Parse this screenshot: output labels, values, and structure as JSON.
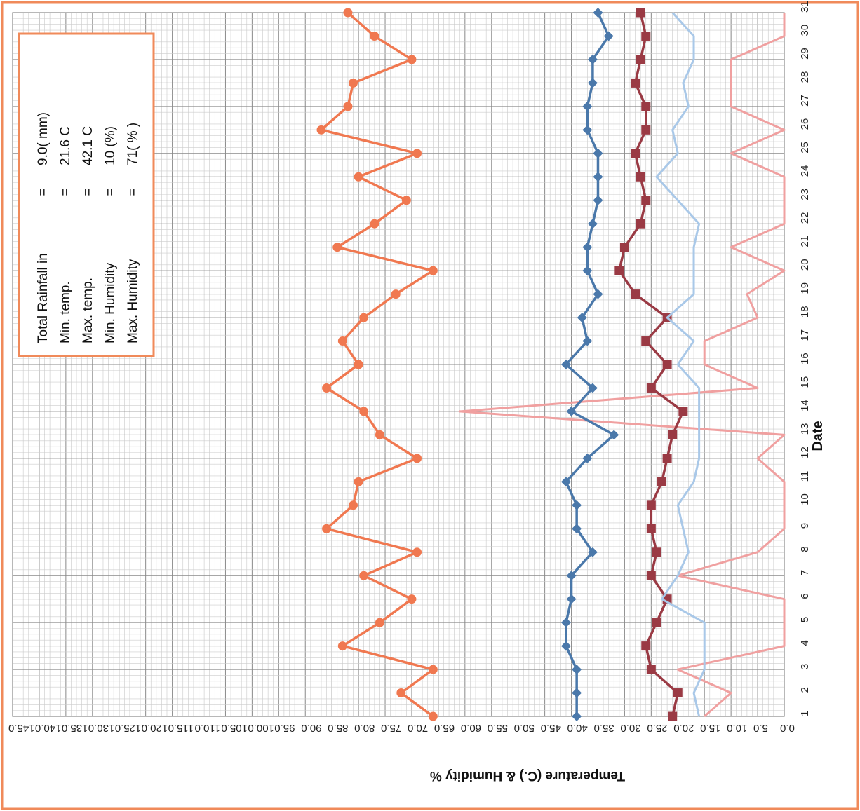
{
  "chart_data": {
    "type": "line",
    "xlabel": "Date",
    "ylabel": "Temperature (C.) & Humidity %",
    "x": [
      1,
      2,
      3,
      4,
      5,
      6,
      7,
      8,
      9,
      10,
      11,
      12,
      13,
      14,
      15,
      16,
      17,
      18,
      19,
      20,
      21,
      22,
      23,
      24,
      25,
      26,
      27,
      28,
      29,
      30,
      31
    ],
    "x_tick_labels": [
      "1",
      "2",
      "3",
      "4",
      "5",
      "6",
      "7",
      "8",
      "9",
      "10",
      "11",
      "12",
      "13",
      "14",
      "15",
      "16",
      "17",
      "18",
      "19",
      "20",
      "21",
      "22",
      "23",
      "24",
      "25",
      "26",
      "27",
      "28",
      "29",
      "30",
      "31"
    ],
    "y_tick_labels": [
      "0.0",
      "5.0",
      "10.0",
      "15.0",
      "20.0",
      "25.0",
      "30.0",
      "35.0",
      "40.0",
      "45.0",
      "50.0",
      "55.0",
      "60.0",
      "65.0",
      "70.0",
      "75.0",
      "80.0",
      "85.0",
      "90.0",
      "95.0",
      "100.0",
      "105.0",
      "110.0",
      "115.0",
      "120.0",
      "125.0",
      "130.0",
      "135.0",
      "140.0",
      "145.0"
    ],
    "ylim": [
      0,
      145
    ],
    "orientation": "rotated-90-clockwise",
    "grid": true,
    "legend_box": {
      "placement": "upper-left",
      "rows": [
        {
          "label": "Total Rainfall in",
          "eq": "=",
          "value": "9.0( mm)"
        },
        {
          "label": "Min. temp.",
          "eq": "=",
          "value": "21.6 C"
        },
        {
          "label": "Max. temp.",
          "eq": "=",
          "value": "42.1 C"
        },
        {
          "label": "Min. Humidity",
          "eq": "=",
          "value": "10 (%)"
        },
        {
          "label": "Max. Humidity",
          "eq": "=",
          "value": "71( % )"
        }
      ]
    },
    "series": [
      {
        "color": "#f07850",
        "marker": "circle",
        "values": [
          66,
          72,
          66,
          83,
          76,
          70,
          79,
          69,
          86,
          81,
          80,
          69,
          76,
          79,
          86,
          80,
          83,
          79,
          73,
          66,
          84,
          77,
          71,
          80,
          69,
          87,
          82,
          81,
          70,
          77,
          82
        ]
      },
      {
        "color": "#f0a0a0",
        "marker": "none",
        "values": [
          15,
          10,
          20,
          0,
          0,
          0,
          20,
          5,
          0,
          0,
          0,
          5,
          0,
          61,
          5,
          15,
          15,
          5,
          7,
          0,
          10,
          0,
          0,
          0,
          10,
          0,
          10,
          10,
          10,
          0,
          0
        ]
      },
      {
        "color": "#4a78aa",
        "marker": "diamond",
        "values": [
          39,
          39,
          39,
          41,
          41,
          40,
          40,
          36,
          39,
          39,
          41,
          37,
          32,
          40,
          36,
          41,
          37,
          38,
          35,
          37,
          37,
          36,
          35,
          35,
          35,
          37,
          37,
          36,
          36,
          33,
          35
        ]
      },
      {
        "color": "#9a3a44",
        "marker": "square",
        "values": [
          21,
          20,
          25,
          26,
          24,
          22,
          25,
          24,
          25,
          25,
          23,
          22,
          21,
          19,
          25,
          22,
          26,
          22,
          28,
          31,
          30,
          27,
          26,
          27,
          28,
          26,
          26,
          28,
          27,
          26,
          27
        ]
      },
      {
        "color": "#a9c8e8",
        "marker": "none",
        "values": [
          16,
          17,
          15,
          15,
          15,
          23,
          20,
          18,
          19,
          20,
          17,
          16,
          16,
          16,
          16,
          20,
          17,
          22,
          17,
          17,
          17,
          16,
          20,
          24,
          20,
          21,
          18,
          19,
          17,
          17,
          21
        ]
      }
    ]
  }
}
